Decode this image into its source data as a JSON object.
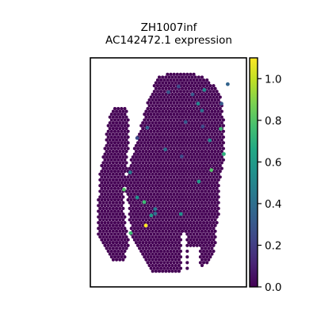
{
  "chart_data": {
    "type": "scatter",
    "title": "ZH1007inf",
    "subtitle": "AC142472.1 expression",
    "xlabel": "",
    "ylabel": "",
    "grid": false,
    "colormap": "viridis",
    "colorbar": {
      "vmin": 0.0,
      "vmax": 1.1,
      "ticks": [
        0.0,
        0.2,
        0.4,
        0.6,
        0.8,
        1.0
      ],
      "tick_labels": [
        "0.0",
        "0.2",
        "0.4",
        "0.6",
        "0.8",
        "1.0"
      ]
    },
    "background_value": 0.0,
    "highlighted_spots": [
      {
        "x": 0.355,
        "y": 0.268,
        "value": 1.1
      },
      {
        "x": 0.215,
        "y": 0.425,
        "value": 0.8
      },
      {
        "x": 0.258,
        "y": 0.235,
        "value": 0.75
      },
      {
        "x": 0.73,
        "y": 0.86,
        "value": 0.5
      },
      {
        "x": 0.835,
        "y": 0.69,
        "value": 0.75
      },
      {
        "x": 0.775,
        "y": 0.51,
        "value": 0.8
      },
      {
        "x": 0.345,
        "y": 0.37,
        "value": 0.75
      },
      {
        "x": 0.39,
        "y": 0.312,
        "value": 0.6
      },
      {
        "x": 0.58,
        "y": 0.318,
        "value": 0.55
      },
      {
        "x": 0.695,
        "y": 0.46,
        "value": 0.6
      },
      {
        "x": 0.69,
        "y": 0.8,
        "value": 0.5
      },
      {
        "x": 0.765,
        "y": 0.64,
        "value": 0.5
      },
      {
        "x": 0.855,
        "y": 0.58,
        "value": 0.7
      },
      {
        "x": 0.3,
        "y": 0.39,
        "value": 0.55
      },
      {
        "x": 0.255,
        "y": 0.5,
        "value": 0.45
      },
      {
        "x": 0.715,
        "y": 0.77,
        "value": 0.4
      },
      {
        "x": 0.48,
        "y": 0.6,
        "value": 0.4
      },
      {
        "x": 0.415,
        "y": 0.34,
        "value": 0.45
      },
      {
        "x": 0.415,
        "y": 0.32,
        "value": 0.4
      },
      {
        "x": 0.365,
        "y": 0.695,
        "value": 0.35
      },
      {
        "x": 0.61,
        "y": 0.72,
        "value": 0.3
      },
      {
        "x": 0.84,
        "y": 0.8,
        "value": 0.3
      },
      {
        "x": 0.88,
        "y": 0.885,
        "value": 0.35
      },
      {
        "x": 0.655,
        "y": 0.84,
        "value": 0.3
      },
      {
        "x": 0.565,
        "y": 0.875,
        "value": 0.25
      },
      {
        "x": 0.5,
        "y": 0.85,
        "value": 0.3
      },
      {
        "x": 0.72,
        "y": 0.7,
        "value": 0.25
      },
      {
        "x": 0.3,
        "y": 0.65,
        "value": 0.25
      },
      {
        "x": 0.585,
        "y": 0.57,
        "value": 0.25
      }
    ]
  }
}
